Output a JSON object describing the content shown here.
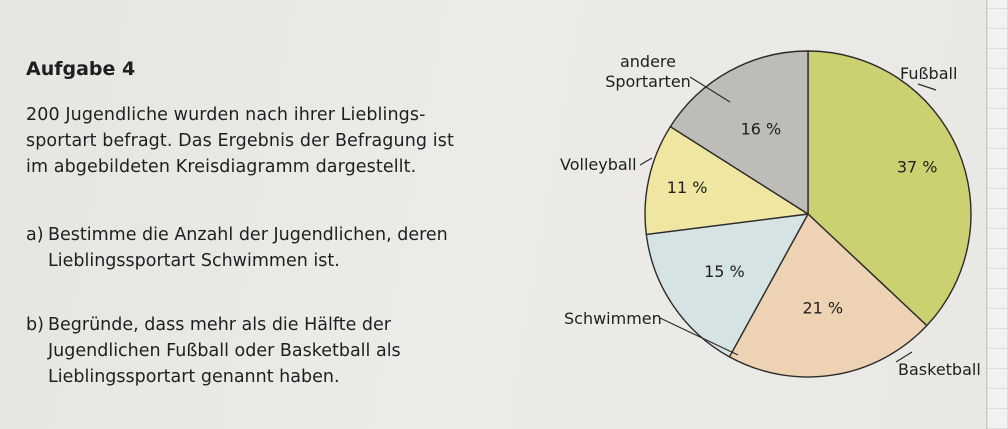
{
  "task": {
    "title": "Aufgabe 4",
    "intro_lines": [
      "200 Jugendliche wurden nach ihrer Lieblings-",
      "sportart befragt. Das Ergebnis der Befragung ist",
      "im abgebildeten Kreisdiagramm dargestellt."
    ],
    "a_letter": "a)",
    "a_lines": [
      "Bestimme die Anzahl der Jugendlichen, deren",
      "Lieblingssportart Schwimmen ist."
    ],
    "b_letter": "b)",
    "b_lines": [
      "Begründe, dass mehr als die Hälfte der",
      "Jugendlichen Fußball oder Basketball als",
      "Lieblingssportart genannt haben."
    ]
  },
  "chart_data": {
    "type": "pie",
    "slices": [
      {
        "label": "Fußball",
        "value": 37,
        "value_label": "37 %",
        "color": "#cbd070"
      },
      {
        "label": "Basketball",
        "value": 21,
        "value_label": "21 %",
        "color": "#edd2b3"
      },
      {
        "label": "Schwimmen",
        "value": 15,
        "value_label": "15 %",
        "color": "#d6e3e4"
      },
      {
        "label": "Volleyball",
        "value": 11,
        "value_label": "11 %",
        "color": "#efe6a2"
      },
      {
        "label": "andere Sportarten",
        "label_lines": [
          "andere",
          "Sportarten"
        ],
        "value": 16,
        "value_label": "16 %",
        "color": "#bdbcb9"
      }
    ]
  }
}
